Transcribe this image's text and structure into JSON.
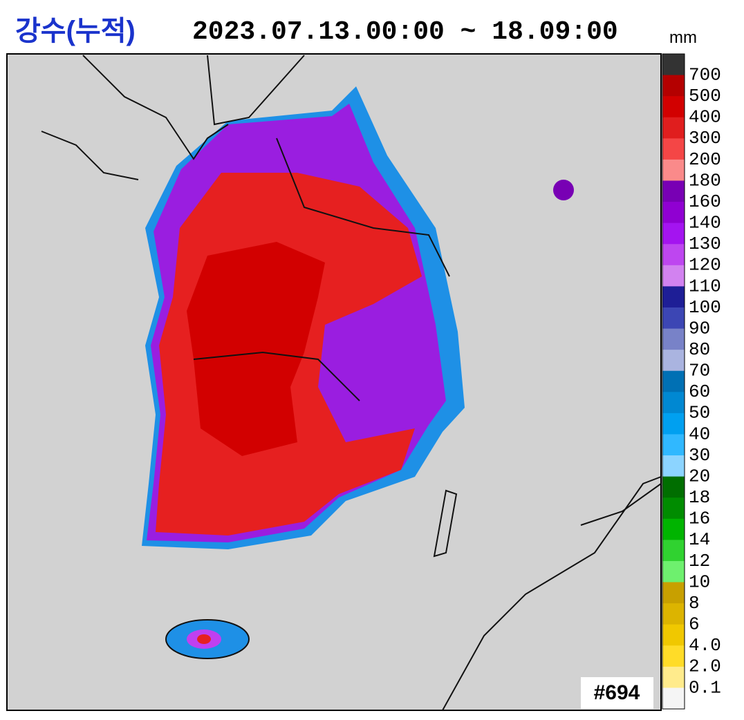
{
  "header": {
    "title": "강수(누적)",
    "period": "2023.07.13.00:00 ~ 18.09:00",
    "unit": "mm"
  },
  "legend": {
    "labels": [
      "700",
      "500",
      "400",
      "300",
      "200",
      "180",
      "160",
      "140",
      "130",
      "120",
      "110",
      "100",
      "90",
      "80",
      "70",
      "60",
      "50",
      "40",
      "30",
      "20",
      "18",
      "16",
      "14",
      "12",
      "10",
      "8",
      "6",
      "4.0",
      "2.0",
      "0.1"
    ],
    "colors": [
      "#333333",
      "#b40000",
      "#d20000",
      "#e01e1e",
      "#f44646",
      "#fa8a8a",
      "#7800b4",
      "#9000d2",
      "#a414f0",
      "#be46f0",
      "#d282f0",
      "#1e1e96",
      "#3c46b4",
      "#7882c8",
      "#aab4e0",
      "#0070b4",
      "#0088d2",
      "#00a0f0",
      "#30b8ff",
      "#8cd4ff",
      "#006e00",
      "#008c00",
      "#00b400",
      "#30d230",
      "#6ef06e",
      "#c8a000",
      "#dcb400",
      "#f0c800",
      "#ffdc28",
      "#ffeb8c",
      "#f5f5f5"
    ]
  },
  "badge": "#694"
}
